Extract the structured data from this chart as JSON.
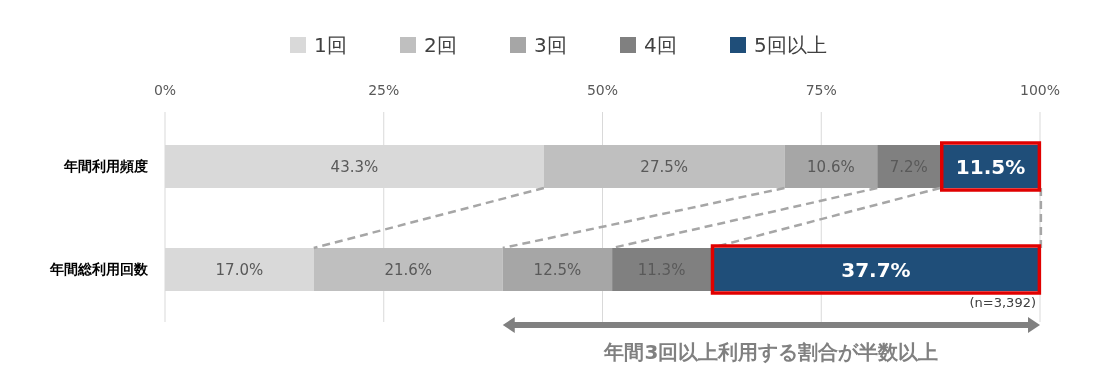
{
  "chart_data": {
    "type": "bar",
    "orientation": "horizontal",
    "stacked": true,
    "categories": [
      "年間利用頻度",
      "年間総利用回数"
    ],
    "series": [
      {
        "name": "1回",
        "color": "#d9d9d9",
        "values": [
          43.3,
          17.0
        ],
        "value_labels": [
          "43.3%",
          "17.0%"
        ]
      },
      {
        "name": "2回",
        "color": "#bfbfbf",
        "values": [
          27.5,
          21.6
        ],
        "value_labels": [
          "27.5%",
          "21.6%"
        ]
      },
      {
        "name": "3回",
        "color": "#a6a6a6",
        "values": [
          10.6,
          12.5
        ],
        "value_labels": [
          "10.6%",
          "12.5%"
        ]
      },
      {
        "name": "4回",
        "color": "#808080",
        "values": [
          7.2,
          11.3
        ],
        "value_labels": [
          "7.2%",
          "11.3%"
        ]
      },
      {
        "name": "5回以上",
        "color": "#1f4e79",
        "values": [
          11.5,
          37.7
        ],
        "value_labels": [
          "11.5%",
          "37.7%"
        ]
      }
    ],
    "xlim": [
      0,
      100
    ],
    "xticks": [
      {
        "value": 0,
        "label": "0%"
      },
      {
        "value": 25,
        "label": "25%"
      },
      {
        "value": 50,
        "label": "50%"
      },
      {
        "value": 75,
        "label": "75%"
      },
      {
        "value": 100,
        "label": "100%"
      }
    ],
    "grid": "x",
    "legend": "top",
    "annotations": [
      "(n=3,392)",
      "年間3回以上利用する割合が半数以上"
    ]
  }
}
